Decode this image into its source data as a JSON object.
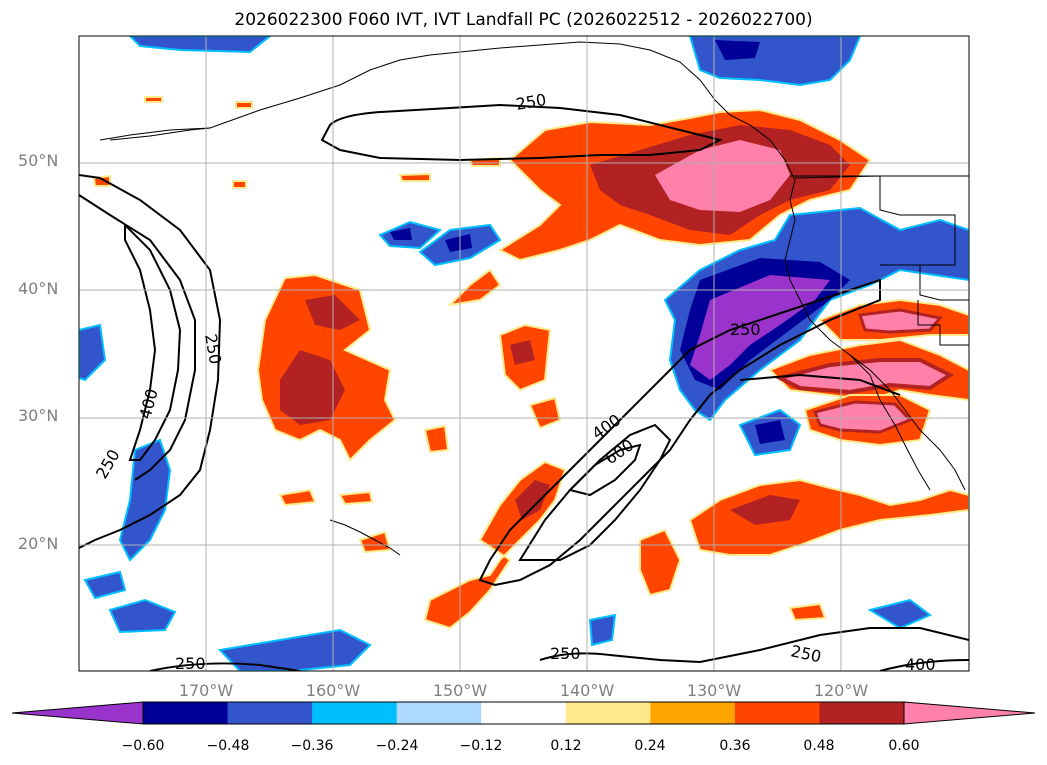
{
  "title": "2026022300 F060 IVT, IVT Landfall PC (2026022512 - 2026022700)",
  "map": {
    "lat_labels": [
      "50°N",
      "40°N",
      "30°N",
      "20°N"
    ],
    "lon_labels": [
      "170°W",
      "160°W",
      "150°W",
      "140°W",
      "130°W",
      "120°W"
    ],
    "ivt_contour_labels": [
      "250",
      "250",
      "400",
      "250",
      "250",
      "400",
      "600",
      "250",
      "250",
      "250",
      "400"
    ],
    "field_colors": {
      "purple": "#9933cc",
      "navy": "#000099",
      "royal_blue": "#3355cc",
      "sky_blue": "#00bfff",
      "light_blue": "#add8ff",
      "yellow": "#ffe98a",
      "orange": "#ffa500",
      "red_orange": "#ff4500",
      "brick": "#b22222",
      "pink": "#ff80a8"
    }
  },
  "colorbar": {
    "colors": [
      "#9933cc",
      "#000099",
      "#3355cc",
      "#00bfff",
      "#add8ff",
      "#ffffff",
      "#ffe98a",
      "#ffa500",
      "#ff4500",
      "#b22222",
      "#ff80a8"
    ],
    "tick_labels": [
      "−0.60",
      "−0.48",
      "−0.36",
      "−0.24",
      "−0.12",
      "0.12",
      "0.24",
      "0.36",
      "0.48",
      "0.60"
    ]
  }
}
